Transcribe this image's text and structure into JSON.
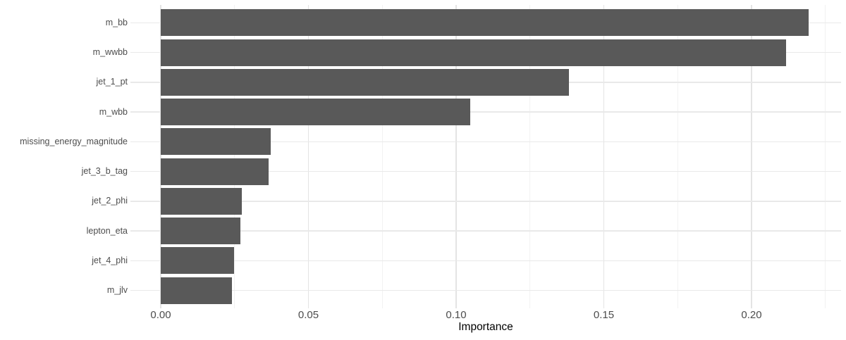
{
  "chart_data": {
    "type": "bar",
    "orientation": "horizontal",
    "title": "",
    "xlabel": "Importance",
    "ylabel": "",
    "categories": [
      "m_bb",
      "m_wwbb",
      "jet_1_pt",
      "m_wbb",
      "missing_energy_magnitude",
      "jet_3_b_tag",
      "jet_2_phi",
      "lepton_eta",
      "jet_4_phi",
      "m_jlv"
    ],
    "values": [
      0.2194,
      0.2118,
      0.1381,
      0.1047,
      0.0373,
      0.0365,
      0.0274,
      0.027,
      0.0249,
      0.0241
    ],
    "x_ticks": [
      0.0,
      0.05,
      0.1,
      0.15,
      0.2
    ],
    "x_tick_labels": [
      "0.00",
      "0.05",
      "0.10",
      "0.15",
      "0.20"
    ],
    "x_minor_ticks": [
      0.025,
      0.075,
      0.125,
      0.175,
      0.225
    ],
    "xlim": [
      -0.011,
      0.2304
    ],
    "grid": true,
    "legend": "none",
    "colors": {
      "bar": "#595959",
      "grid_major": "#e4e4e4",
      "grid_minor": "#f2f2f2",
      "grid_horizontal": "#e9e9e9",
      "axis_text": "#4d4d4d",
      "axis_title": "#000000",
      "background": "#ffffff"
    }
  }
}
